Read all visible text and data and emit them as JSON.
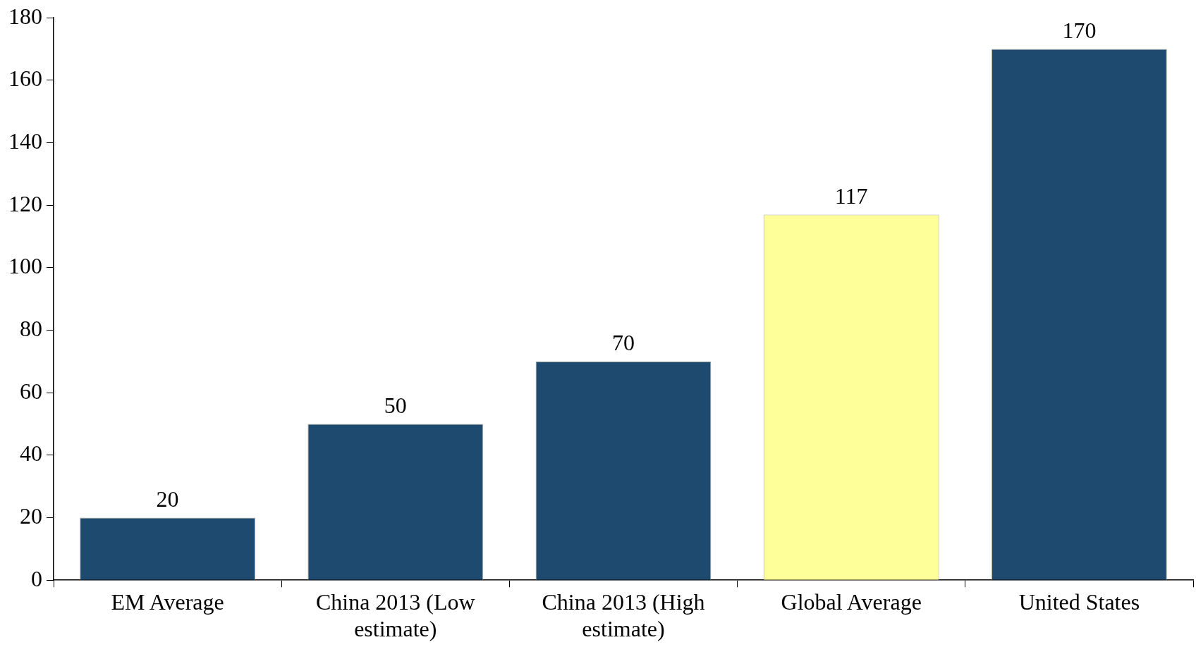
{
  "chart_data": {
    "type": "bar",
    "categories": [
      "EM Average",
      "China 2013 (Low estimate)",
      "China 2013 (High estimate)",
      "Global Average",
      "United States"
    ],
    "values": [
      20,
      50,
      70,
      117,
      170
    ],
    "colors": [
      "#1f4a70",
      "#1f4a70",
      "#1f4a70",
      "#ffff99",
      "#1f4a70"
    ],
    "ylim": [
      0,
      180
    ],
    "yticks": [
      0,
      20,
      40,
      60,
      80,
      100,
      120,
      140,
      160,
      180
    ],
    "grid": false,
    "legend": false,
    "data_labels": true
  }
}
